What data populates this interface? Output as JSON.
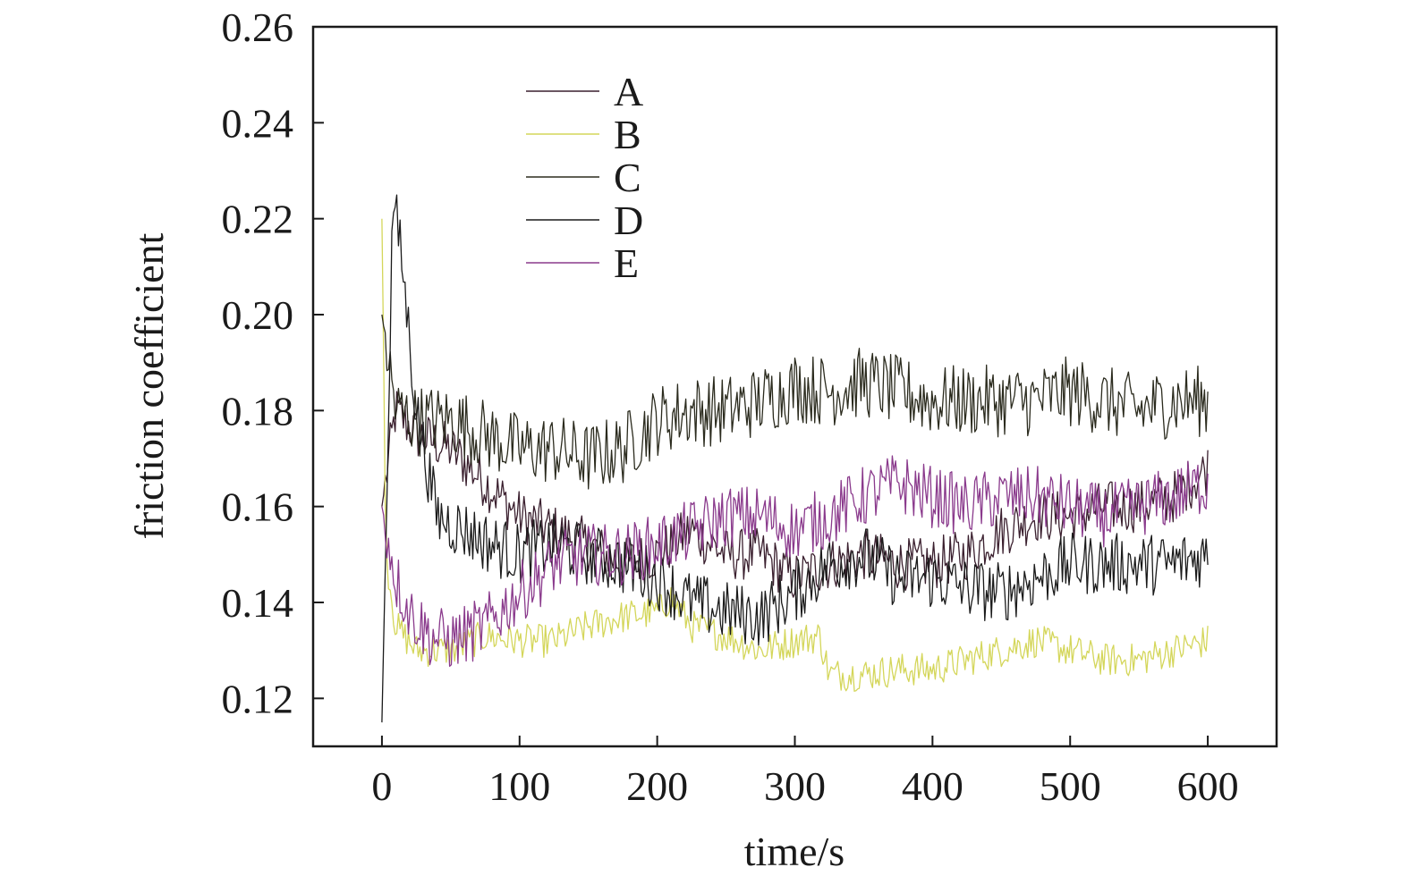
{
  "chart_data": {
    "type": "line",
    "title": "",
    "xlabel": "time/s",
    "ylabel": "friction coefficient",
    "xlim": [
      -50,
      650
    ],
    "ylim": [
      0.11,
      0.26
    ],
    "xticks": [
      0,
      100,
      200,
      300,
      400,
      500,
      600
    ],
    "yticks": [
      0.12,
      0.14,
      0.16,
      0.18,
      0.2,
      0.22,
      0.24,
      0.26
    ],
    "xtick_labels": [
      "0",
      "100",
      "200",
      "300",
      "400",
      "500",
      "600"
    ],
    "ytick_labels": [
      "0.12",
      "0.14",
      "0.16",
      "0.18",
      "0.20",
      "0.22",
      "0.24",
      "0.26"
    ],
    "grid": false,
    "legend_position": "top-left",
    "series": [
      {
        "name": "A",
        "color": "#3a1f2e",
        "x": [
          0,
          10,
          25,
          50,
          75,
          100,
          125,
          150,
          175,
          200,
          225,
          250,
          275,
          300,
          325,
          350,
          375,
          400,
          425,
          450,
          475,
          500,
          525,
          550,
          575,
          600
        ],
        "y": [
          0.16,
          0.18,
          0.175,
          0.172,
          0.165,
          0.158,
          0.155,
          0.152,
          0.148,
          0.15,
          0.155,
          0.15,
          0.15,
          0.145,
          0.148,
          0.15,
          0.148,
          0.148,
          0.15,
          0.155,
          0.158,
          0.158,
          0.16,
          0.16,
          0.162,
          0.168
        ]
      },
      {
        "name": "B",
        "color": "#d4d65a",
        "x": [
          0,
          3,
          10,
          25,
          50,
          75,
          100,
          125,
          150,
          175,
          200,
          210,
          225,
          250,
          275,
          300,
          318,
          325,
          350,
          375,
          400,
          425,
          450,
          475,
          500,
          525,
          550,
          575,
          600
        ],
        "y": [
          0.22,
          0.15,
          0.135,
          0.13,
          0.13,
          0.133,
          0.132,
          0.132,
          0.135,
          0.137,
          0.138,
          0.141,
          0.135,
          0.133,
          0.13,
          0.132,
          0.133,
          0.125,
          0.125,
          0.126,
          0.126,
          0.128,
          0.13,
          0.132,
          0.13,
          0.128,
          0.128,
          0.13,
          0.132
        ]
      },
      {
        "name": "C",
        "color": "#2b2b1e",
        "x": [
          0,
          10,
          25,
          50,
          75,
          100,
          125,
          150,
          175,
          200,
          225,
          250,
          275,
          300,
          325,
          350,
          375,
          400,
          425,
          450,
          475,
          500,
          525,
          550,
          575,
          600
        ],
        "y": [
          0.2,
          0.18,
          0.178,
          0.178,
          0.175,
          0.172,
          0.172,
          0.17,
          0.172,
          0.178,
          0.18,
          0.18,
          0.182,
          0.185,
          0.184,
          0.186,
          0.184,
          0.182,
          0.182,
          0.182,
          0.182,
          0.184,
          0.182,
          0.18,
          0.182,
          0.182
        ]
      },
      {
        "name": "D",
        "color": "#1a1a1a",
        "x": [
          0,
          8,
          15,
          25,
          40,
          60,
          80,
          100,
          125,
          150,
          175,
          200,
          225,
          250,
          275,
          300,
          325,
          350,
          375,
          400,
          425,
          450,
          475,
          500,
          525,
          550,
          575,
          600
        ],
        "y": [
          0.115,
          0.225,
          0.21,
          0.18,
          0.158,
          0.155,
          0.152,
          0.15,
          0.152,
          0.15,
          0.148,
          0.145,
          0.14,
          0.138,
          0.137,
          0.142,
          0.148,
          0.15,
          0.145,
          0.145,
          0.143,
          0.142,
          0.145,
          0.148,
          0.148,
          0.148,
          0.148,
          0.15
        ]
      },
      {
        "name": "E",
        "color": "#8a3a8c",
        "x": [
          0,
          10,
          20,
          35,
          50,
          75,
          100,
          125,
          150,
          175,
          200,
          225,
          250,
          275,
          300,
          325,
          350,
          375,
          400,
          425,
          450,
          475,
          500,
          525,
          550,
          575,
          600
        ],
        "y": [
          0.16,
          0.145,
          0.138,
          0.133,
          0.132,
          0.135,
          0.142,
          0.148,
          0.15,
          0.15,
          0.152,
          0.155,
          0.158,
          0.158,
          0.155,
          0.158,
          0.162,
          0.165,
          0.162,
          0.16,
          0.162,
          0.162,
          0.16,
          0.158,
          0.16,
          0.162,
          0.165
        ]
      }
    ]
  }
}
